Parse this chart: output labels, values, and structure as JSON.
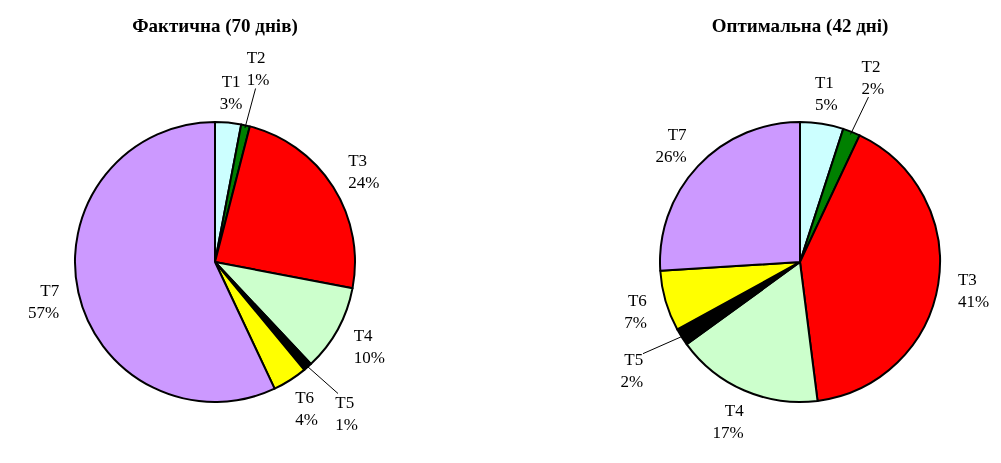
{
  "chart_data": [
    {
      "type": "pie",
      "title": "Фактична (70 днів)",
      "categories": [
        "T1",
        "T2",
        "T3",
        "T4",
        "T5",
        "T6",
        "T7"
      ],
      "values": [
        3,
        1,
        24,
        10,
        1,
        4,
        57
      ],
      "value_labels": [
        "3%",
        "1%",
        "24%",
        "10%",
        "1%",
        "4%",
        "57%"
      ],
      "colors": [
        "#ccffff",
        "#008000",
        "#ff0000",
        "#ccffcc",
        "#000000",
        "#ffff00",
        "#cc99ff"
      ]
    },
    {
      "type": "pie",
      "title": "Оптимальна (42 дні)",
      "categories": [
        "T1",
        "T2",
        "T3",
        "T4",
        "T5",
        "T6",
        "T7"
      ],
      "values": [
        5,
        2,
        41,
        17,
        2,
        7,
        26
      ],
      "value_labels": [
        "5%",
        "2%",
        "41%",
        "17%",
        "2%",
        "7%",
        "26%"
      ],
      "colors": [
        "#ccffff",
        "#008000",
        "#ff0000",
        "#ccffcc",
        "#000000",
        "#ffff00",
        "#cc99ff"
      ]
    }
  ]
}
